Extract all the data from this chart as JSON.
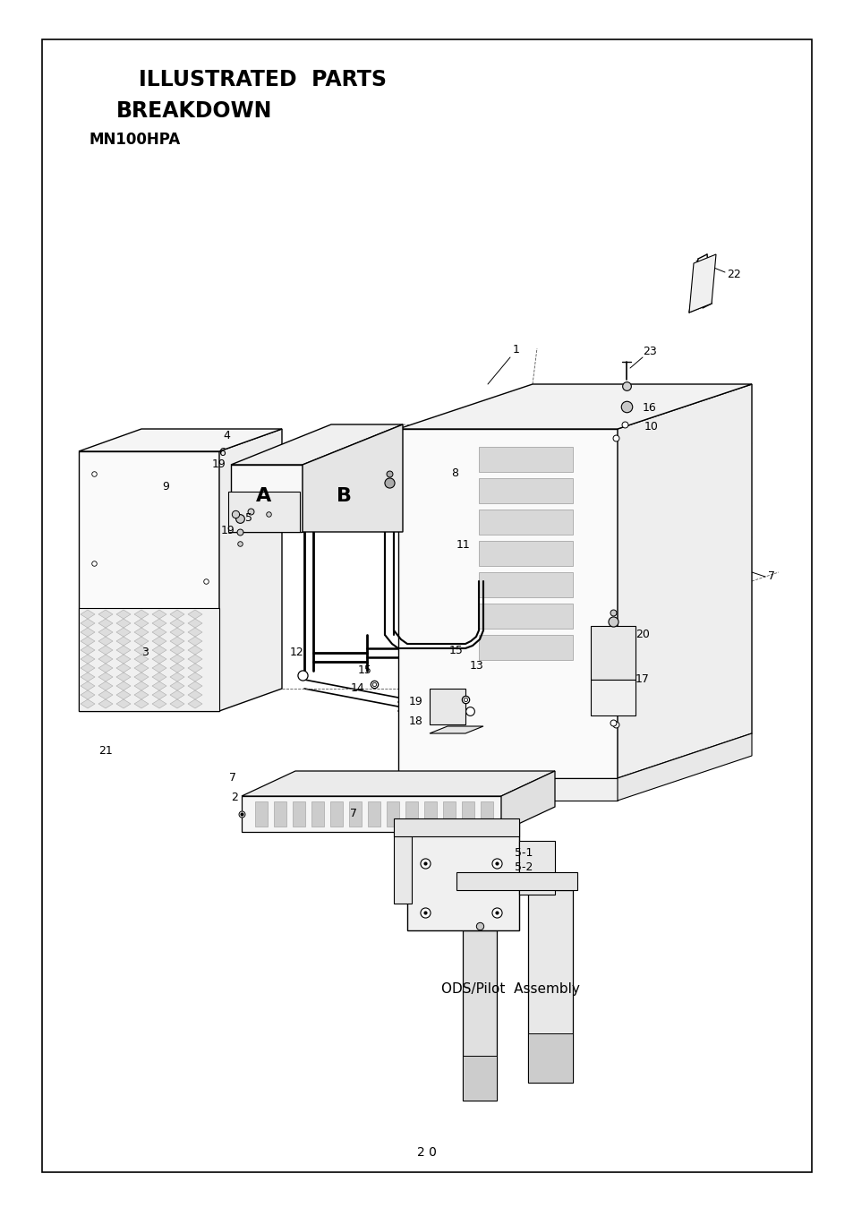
{
  "title_line1": "ILLUSTRATED  PARTS",
  "title_line2": "BREAKDOWN",
  "title_line3": "MN100HPA",
  "page_number": "2 0",
  "bg_color": "#ffffff",
  "text_color": "#000000",
  "caption": "ODS/Pilot  Assembly",
  "border_lw": 1.2,
  "fig_w": 9.54,
  "fig_h": 13.49,
  "dpi": 100
}
